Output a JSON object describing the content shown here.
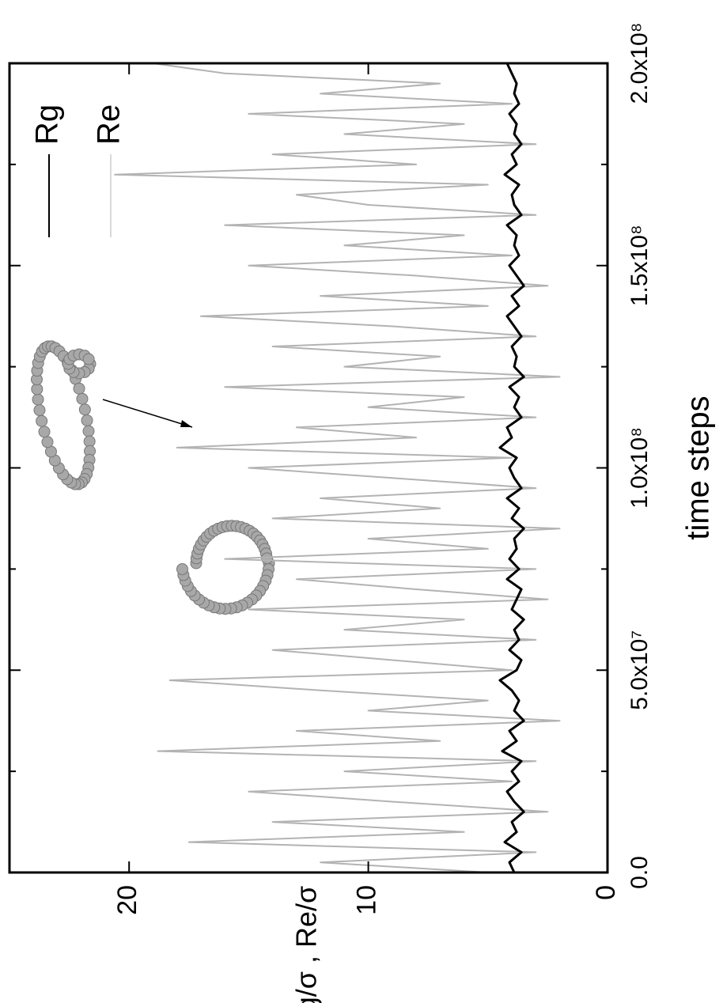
{
  "chart_data": {
    "type": "line",
    "x_label": "time steps",
    "y_label": "Rg/σ ,  Re/σ",
    "xlim": [
      0,
      200000000
    ],
    "ylim": [
      0,
      25
    ],
    "xticks": [
      {
        "value": 0,
        "label": "0.0"
      },
      {
        "value": 50000000,
        "label": "5.0x10⁷"
      },
      {
        "value": 100000000,
        "label": "1.0x10⁸"
      },
      {
        "value": 150000000,
        "label": "1.5x10⁸"
      },
      {
        "value": 200000000,
        "label": "2.0x10⁸"
      }
    ],
    "xminorticks": [
      25000000,
      75000000,
      125000000,
      175000000
    ],
    "yticks": [
      0,
      10,
      20
    ],
    "x": [
      0,
      2500000,
      5000000,
      7500000,
      10000000,
      12500000,
      15000000,
      17500000,
      20000000,
      22500000,
      25000000,
      27500000,
      30000000,
      32500000,
      35000000,
      37500000,
      40000000,
      42500000,
      45000000,
      47500000,
      50000000,
      52500000,
      55000000,
      57500000,
      60000000,
      62500000,
      65000000,
      67500000,
      70000000,
      72500000,
      75000000,
      77500000,
      80000000,
      82500000,
      85000000,
      87500000,
      90000000,
      92500000,
      95000000,
      97500000,
      100000000,
      102500000,
      105000000,
      107500000,
      110000000,
      112500000,
      115000000,
      117500000,
      120000000,
      122500000,
      125000000,
      127500000,
      130000000,
      132500000,
      135000000,
      137500000,
      140000000,
      142500000,
      145000000,
      147500000,
      150000000,
      152500000,
      155000000,
      157500000,
      160000000,
      162500000,
      165000000,
      167500000,
      170000000,
      172500000,
      175000000,
      177500000,
      180000000,
      182500000,
      185000000,
      187500000,
      190000000,
      192500000,
      195000000,
      197500000,
      200000000
    ],
    "series": [
      {
        "name": "Re",
        "color": "#b3b3b3",
        "width": 2,
        "values": [
          5,
          12,
          3,
          17.5,
          6,
          14,
          2.5,
          9,
          15,
          4,
          11,
          3,
          18.8,
          7,
          13,
          2,
          10,
          5,
          12,
          18.3,
          4,
          9,
          14,
          3,
          11,
          6,
          15,
          2.5,
          8,
          13,
          3,
          16,
          5,
          10,
          2,
          14,
          7,
          12,
          3,
          9,
          15,
          4,
          18,
          8,
          13,
          3,
          10,
          6,
          16,
          2,
          11,
          7,
          14,
          3,
          9,
          17,
          5,
          12,
          2.5,
          8,
          15,
          4,
          11,
          6,
          16,
          3,
          10,
          13,
          5,
          20.6,
          8,
          14,
          3,
          11,
          6,
          15,
          4,
          12,
          7,
          16,
          19
        ]
      },
      {
        "name": "Rg",
        "color": "#000000",
        "width": 3,
        "values": [
          3.9,
          4.1,
          3.6,
          4.3,
          3.8,
          4.0,
          3.5,
          3.9,
          4.2,
          3.7,
          4.0,
          3.6,
          4.4,
          3.8,
          4.1,
          3.5,
          3.9,
          3.7,
          4.0,
          4.5,
          3.8,
          3.6,
          4.1,
          3.7,
          3.9,
          3.5,
          4.0,
          3.8,
          3.6,
          4.2,
          3.7,
          4.1,
          3.8,
          3.9,
          3.5,
          4.0,
          3.7,
          4.2,
          3.6,
          3.9,
          4.1,
          3.8,
          4.5,
          4.0,
          4.2,
          3.6,
          3.9,
          3.7,
          4.1,
          3.5,
          3.9,
          3.8,
          4.0,
          3.6,
          3.9,
          4.2,
          3.7,
          4.0,
          3.5,
          3.8,
          4.1,
          3.7,
          3.9,
          3.8,
          4.2,
          3.6,
          3.9,
          4.0,
          3.7,
          4.3,
          3.8,
          4.0,
          3.6,
          3.9,
          3.8,
          4.1,
          3.7,
          3.9,
          3.8,
          4.0,
          4.2
        ]
      }
    ],
    "legend_order": [
      1,
      0
    ]
  }
}
